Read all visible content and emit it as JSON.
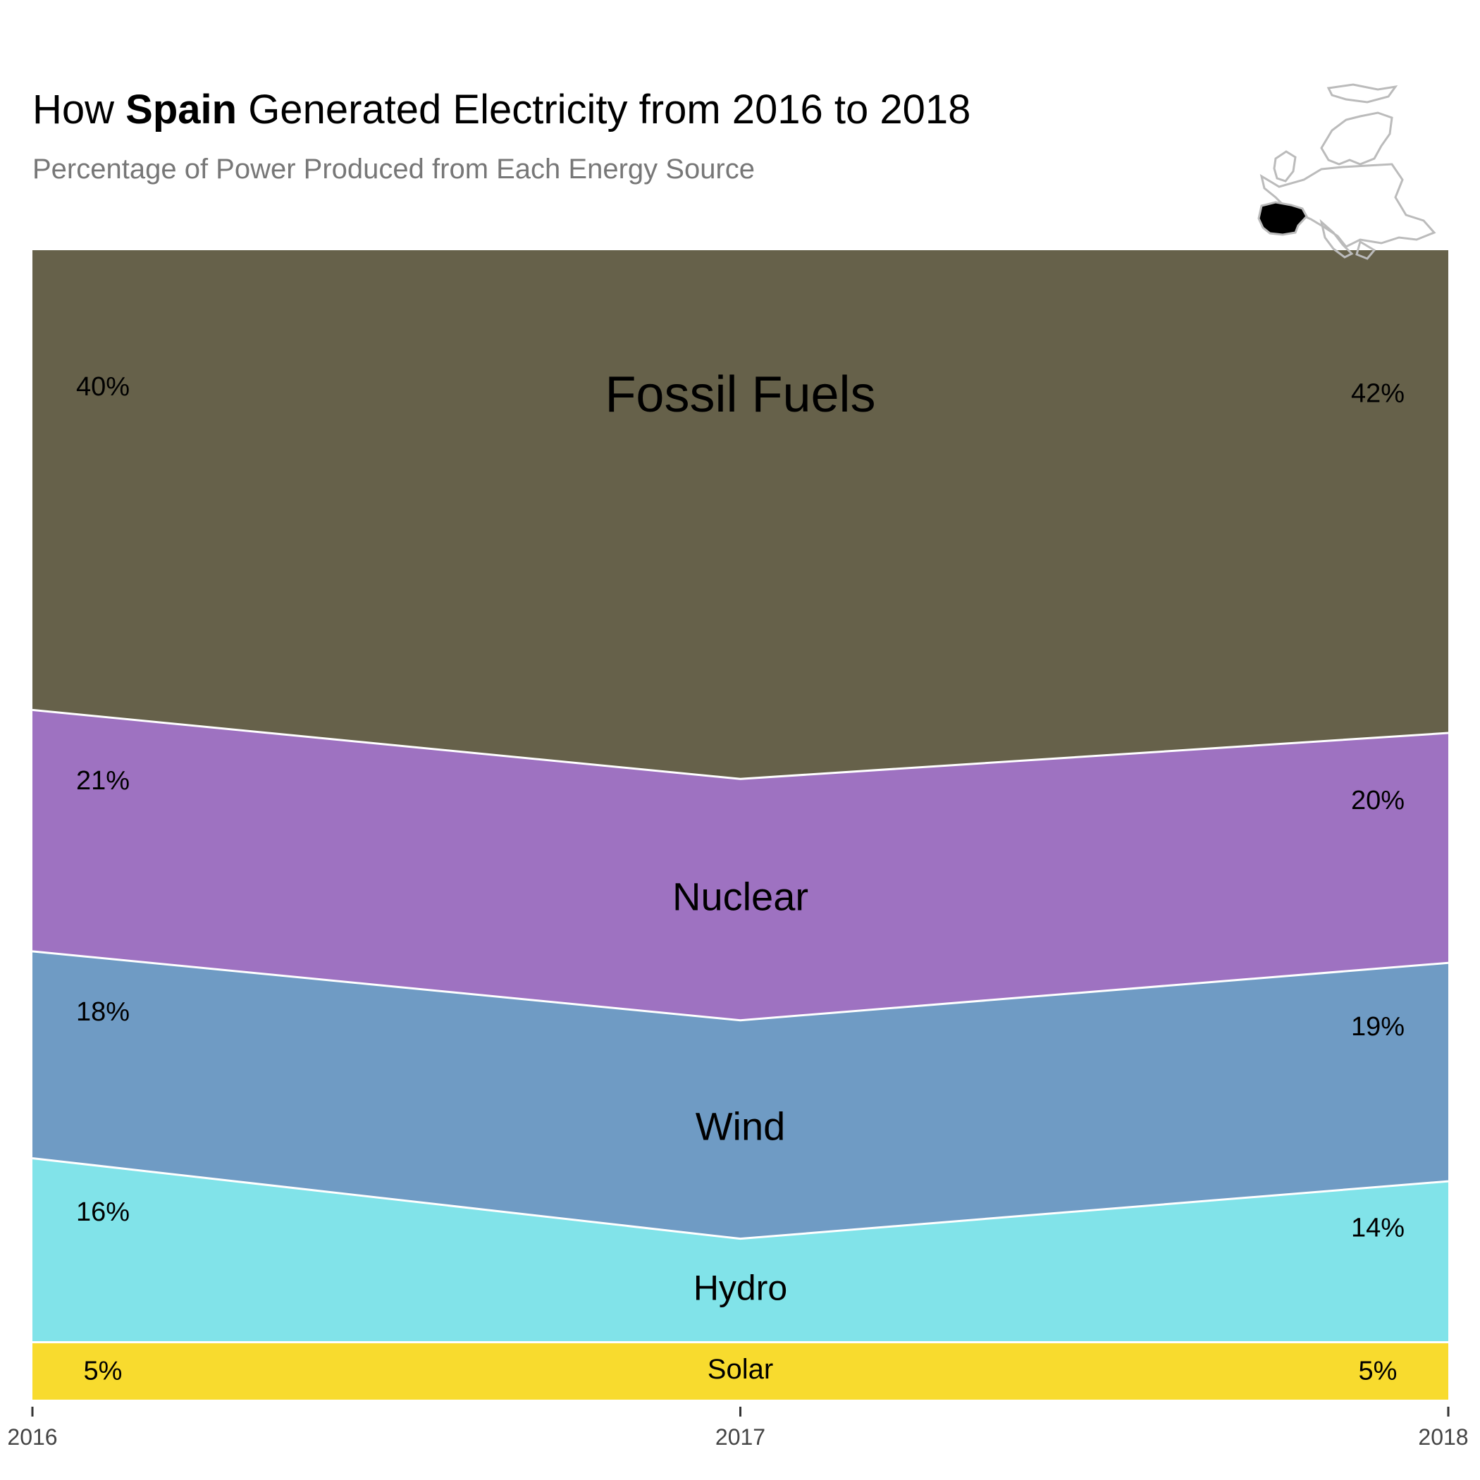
{
  "title": {
    "prefix": "How ",
    "country": "Spain",
    "suffix": " Generated Electricity from 2016 to 2018"
  },
  "subtitle": "Percentage of Power Produced from Each Energy Source",
  "inset_map": {
    "highlight": "Spain",
    "highlight_color": "#000000",
    "outline_color": "#bbbbbb"
  },
  "chart_data": {
    "type": "area",
    "stacking": "percent",
    "x": [
      "2016",
      "2017",
      "2018"
    ],
    "ylim": [
      0,
      100
    ],
    "grid": false,
    "series": [
      {
        "name": "Solar",
        "color": "#f8db2e",
        "values": [
          5,
          5,
          5
        ],
        "labels": [
          "5%",
          "",
          "5%"
        ]
      },
      {
        "name": "Hydro",
        "color": "#81e3e9",
        "values": [
          16,
          9,
          14
        ],
        "labels": [
          "16%",
          "",
          "14%"
        ]
      },
      {
        "name": "Wind",
        "color": "#6f9bc4",
        "values": [
          18,
          19,
          19
        ],
        "labels": [
          "18%",
          "",
          "19%"
        ]
      },
      {
        "name": "Nuclear",
        "color": "#9e72c1",
        "values": [
          21,
          21,
          20
        ],
        "labels": [
          "21%",
          "",
          "20%"
        ]
      },
      {
        "name": "Fossil Fuels",
        "color": "#66614a",
        "values": [
          40,
          46,
          42
        ],
        "labels": [
          "40%",
          "",
          "42%"
        ]
      }
    ]
  }
}
